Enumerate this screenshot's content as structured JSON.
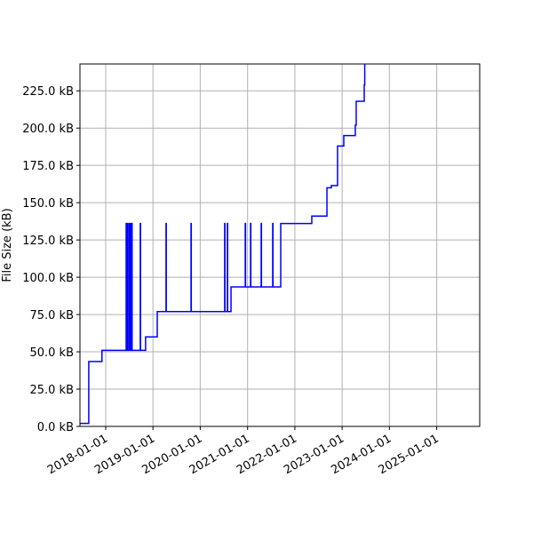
{
  "chart_data": {
    "type": "line",
    "title": "",
    "xlabel": "",
    "ylabel": "File Size (kB)",
    "xlim": [
      "2017-06-16",
      "2025-11-29"
    ],
    "ylim": [
      0,
      243
    ],
    "grid": true,
    "line_color": "#0000ff",
    "x_ticks": [
      "2018-01-01",
      "2019-01-01",
      "2020-01-01",
      "2021-01-01",
      "2022-01-01",
      "2023-01-01",
      "2024-01-01",
      "2025-01-01"
    ],
    "y_ticks": [
      0,
      25,
      50,
      75,
      100,
      125,
      150,
      175,
      200,
      225
    ],
    "y_tick_labels": [
      "0.0 kB",
      "25.0 kB",
      "50.0 kB",
      "75.0 kB",
      "100.0 kB",
      "125.0 kB",
      "150.0 kB",
      "175.0 kB",
      "200.0 kB",
      "225.0 kB"
    ],
    "series": [
      {
        "drawstyle": "steps-post",
        "points": [
          [
            "2017-06-16",
            2
          ],
          [
            "2017-08-23",
            43.5
          ],
          [
            "2017-12-03",
            51
          ],
          [
            "2018-06-08",
            136
          ],
          [
            "2018-06-10",
            51
          ],
          [
            "2018-06-15",
            136
          ],
          [
            "2018-06-17",
            51
          ],
          [
            "2018-06-28",
            136
          ],
          [
            "2018-06-30",
            51
          ],
          [
            "2018-07-10",
            136
          ],
          [
            "2018-07-12",
            51
          ],
          [
            "2018-07-22",
            136
          ],
          [
            "2018-07-24",
            51
          ],
          [
            "2018-09-25",
            136
          ],
          [
            "2018-09-27",
            51
          ],
          [
            "2018-11-05",
            60
          ],
          [
            "2019-02-03",
            77
          ],
          [
            "2019-04-12",
            136
          ],
          [
            "2019-04-14",
            77
          ],
          [
            "2019-10-22",
            136
          ],
          [
            "2019-10-24",
            77
          ],
          [
            "2020-07-08",
            136
          ],
          [
            "2020-07-10",
            77
          ],
          [
            "2020-07-29",
            136
          ],
          [
            "2020-07-31",
            77
          ],
          [
            "2020-08-26",
            93.5
          ],
          [
            "2020-12-14",
            136
          ],
          [
            "2020-12-16",
            93.5
          ],
          [
            "2021-01-24",
            136
          ],
          [
            "2021-01-26",
            93.5
          ],
          [
            "2021-04-16",
            136
          ],
          [
            "2021-04-18",
            93.5
          ],
          [
            "2021-07-14",
            136
          ],
          [
            "2021-07-16",
            93.5
          ],
          [
            "2021-09-14",
            136
          ],
          [
            "2022-05-12",
            141
          ],
          [
            "2022-09-06",
            160
          ],
          [
            "2022-10-10",
            161.5
          ],
          [
            "2022-11-27",
            188
          ],
          [
            "2023-01-14",
            195
          ],
          [
            "2023-04-13",
            202
          ],
          [
            "2023-04-20",
            218
          ],
          [
            "2023-06-21",
            229
          ],
          [
            "2023-06-25",
            250
          ]
        ]
      }
    ]
  }
}
